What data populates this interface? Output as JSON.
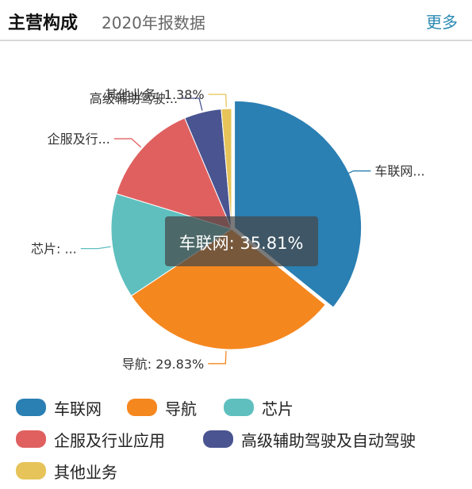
{
  "header": {
    "title": "主营构成",
    "subtitle": "2020年报数据",
    "more_label": "更多"
  },
  "chart_data": {
    "type": "pie",
    "slices": [
      {
        "name": "车联网",
        "value": 35.81,
        "color": "#2a7fb3",
        "callout": "车联网..."
      },
      {
        "name": "导航",
        "value": 29.83,
        "color": "#f5871f",
        "callout": "导航: 29.83%"
      },
      {
        "name": "芯片",
        "value": 14.1,
        "color": "#5fbfbf",
        "callout": "芯片: ..."
      },
      {
        "name": "企服及行业应用",
        "value": 13.9,
        "color": "#e06060",
        "callout": "企服及行..."
      },
      {
        "name": "高级辅助驾驶及自动驾驶",
        "value": 4.98,
        "color": "#4a5490",
        "callout": "高级辅助驾驶..."
      },
      {
        "name": "其他业务",
        "value": 1.38,
        "color": "#e6c45a",
        "callout": "其他业务: 1.38%"
      }
    ],
    "tooltip": "车联网: 35.81%",
    "highlighted_slice": "车联网",
    "legend_position": "bottom"
  }
}
